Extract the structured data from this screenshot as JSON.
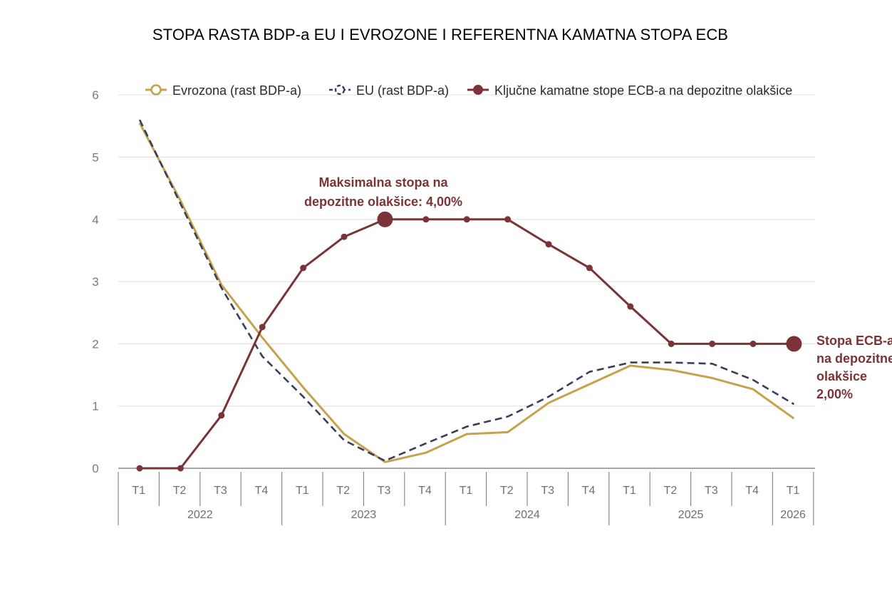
{
  "title": "STOPA RASTA BDP-a EU I EVROZONE I REFERENTNA KAMATNA STOPA ECB",
  "chart_data": {
    "type": "line",
    "ylim": [
      0,
      6
    ],
    "yticks": [
      "0",
      "1",
      "2",
      "3",
      "4",
      "5",
      "6"
    ],
    "categories": [
      "T1",
      "T2",
      "T3",
      "T4",
      "T1",
      "T2",
      "T3",
      "T4",
      "T1",
      "T2",
      "T3",
      "T4",
      "T1",
      "T2",
      "T3",
      "T4",
      "T1"
    ],
    "years": [
      {
        "label": "2022",
        "span": 4
      },
      {
        "label": "2023",
        "span": 4
      },
      {
        "label": "2024",
        "span": 4
      },
      {
        "label": "2025",
        "span": 4
      },
      {
        "label": "2026",
        "span": 1
      }
    ],
    "series": [
      {
        "name": "Evrozona (rast BDP-a)",
        "color": "#c4a24e",
        "style": "solid",
        "values": [
          5.55,
          4.3,
          2.95,
          2.1,
          1.3,
          0.55,
          0.1,
          0.25,
          0.55,
          0.58,
          1.05,
          1.35,
          1.65,
          1.58,
          1.45,
          1.27,
          0.8
        ]
      },
      {
        "name": "EU (rast BDP-a)",
        "color": "#3a3d5c",
        "style": "dashed",
        "values": [
          5.6,
          4.25,
          2.9,
          1.8,
          1.15,
          0.45,
          0.12,
          0.4,
          0.67,
          0.83,
          1.15,
          1.55,
          1.7,
          1.7,
          1.68,
          1.42,
          1.03
        ]
      },
      {
        "name": "Ključne kamatne stope ECB-a na depozitne olakšice",
        "color": "#7a3336",
        "style": "solid-markers",
        "values": [
          0,
          0,
          0.85,
          2.27,
          3.22,
          3.72,
          4.0,
          4.0,
          4.0,
          4.0,
          3.6,
          3.22,
          2.6,
          2.0,
          2.0,
          2.0,
          2.0
        ]
      }
    ],
    "highlight_points": [
      6,
      16
    ],
    "annotations": [
      {
        "lines": [
          "Maksimalna stopa na",
          "depozitne olakšice: 4,00%"
        ]
      },
      {
        "lines": [
          "Stopa ECB-a",
          "na depozitne",
          "olakšice",
          "2,00%"
        ]
      }
    ]
  }
}
